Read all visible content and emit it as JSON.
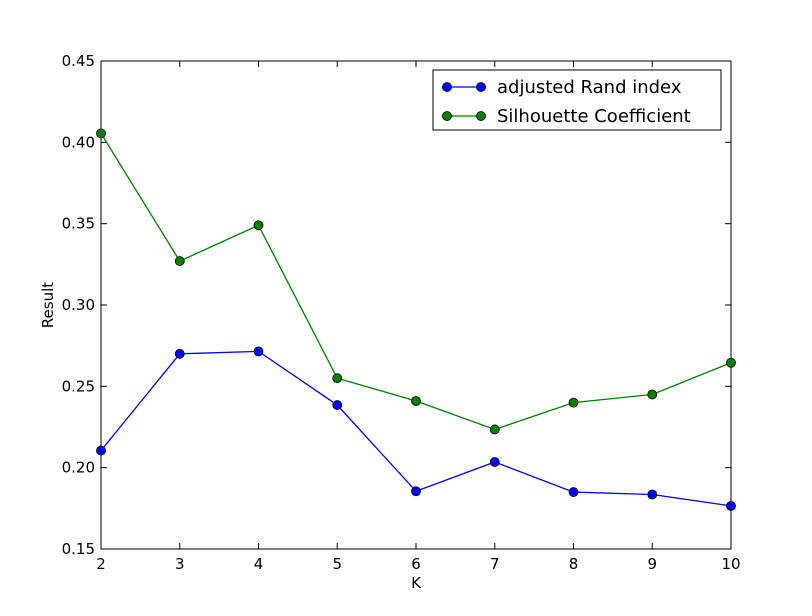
{
  "chart_data": {
    "type": "line",
    "title": "",
    "xlabel": "K",
    "ylabel": "Result",
    "xlim": [
      2,
      10
    ],
    "ylim": [
      0.15,
      0.45
    ],
    "x": [
      2,
      3,
      4,
      5,
      6,
      7,
      8,
      9,
      10
    ],
    "x_tick_labels": [
      "2",
      "3",
      "4",
      "5",
      "6",
      "7",
      "8",
      "9",
      "10"
    ],
    "y_ticks": [
      0.15,
      0.2,
      0.25,
      0.3,
      0.35,
      0.4,
      0.45
    ],
    "y_tick_labels": [
      "0.15",
      "0.20",
      "0.25",
      "0.30",
      "0.35",
      "0.40",
      "0.45"
    ],
    "grid": false,
    "legend_position": "top-right",
    "series": [
      {
        "name": "adjusted Rand index",
        "color": "#0000ff",
        "marker_color": "#0000ff",
        "values": [
          0.2105,
          0.27,
          0.2715,
          0.2385,
          0.1855,
          0.2035,
          0.185,
          0.1835,
          0.1765
        ]
      },
      {
        "name": "Silhouette Coefficient",
        "color": "#008000",
        "marker_color": "#007f00",
        "values": [
          0.4055,
          0.327,
          0.349,
          0.255,
          0.241,
          0.2235,
          0.24,
          0.245,
          0.2645
        ]
      }
    ]
  }
}
